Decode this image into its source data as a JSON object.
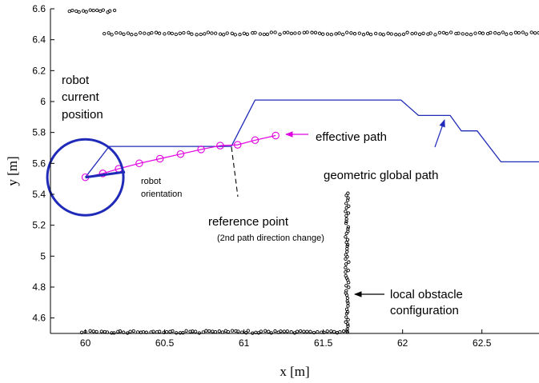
{
  "chart_data": {
    "type": "scatter",
    "title": "",
    "xlabel": "x [m]",
    "ylabel": "y [m]",
    "xlim": [
      59.78,
      62.86
    ],
    "ylim": [
      4.5,
      6.6
    ],
    "grid": false,
    "legend": "none",
    "x_ticks": [
      60,
      60.5,
      61,
      61.5,
      62,
      62.5
    ],
    "x_tick_labels": [
      "60",
      "60.5",
      "61",
      "61.5",
      "62",
      "62.5"
    ],
    "y_ticks": [
      4.6,
      4.8,
      5,
      5.2,
      5.4,
      5.6,
      5.8,
      6,
      6.2,
      6.4,
      6.6
    ],
    "y_tick_labels": [
      "4.6",
      "4.8",
      "5",
      "5.2",
      "5.4",
      "5.6",
      "5.8",
      "6",
      "6.2",
      "6.4",
      "6.6"
    ],
    "colors": {
      "global_path": "#1f2bb8",
      "effective_path": "#e000e0",
      "robot": "#1f2bb8",
      "obstacles": "#000000"
    },
    "obstacle_segments": [
      {
        "x_range": [
          59.9,
          60.18
        ],
        "y": 6.585,
        "count": 14
      },
      {
        "x_range": [
          60.12,
          62.86
        ],
        "y": 6.44,
        "count": 110
      },
      {
        "x_range": [
          60.12,
          61.65
        ],
        "y": 4.51,
        "count": 75
      },
      {
        "x_range": [
          59.98,
          60.1
        ],
        "y": 4.51,
        "count": 6
      },
      {
        "x": 61.65,
        "y_range": [
          4.51,
          5.41
        ],
        "count": 55
      }
    ],
    "series": [
      {
        "x": [
          60.0,
          60.15,
          60.92,
          61.07,
          61.99,
          62.1,
          62.3,
          62.37,
          62.47,
          62.62,
          62.86
        ],
        "y": [
          5.51,
          5.71,
          5.71,
          6.01,
          6.01,
          5.91,
          5.91,
          5.81,
          5.81,
          5.61,
          5.61
        ]
      },
      {
        "x": [
          60.0,
          60.11,
          60.21,
          60.34,
          60.47,
          60.6,
          60.73,
          60.85,
          60.96,
          61.07,
          61.2
        ],
        "y": [
          5.51,
          5.535,
          5.565,
          5.6,
          5.63,
          5.66,
          5.69,
          5.715,
          5.72,
          5.75,
          5.78
        ]
      }
    ],
    "robot": {
      "x": 60.0,
      "y": 5.51,
      "radius": 0.24,
      "orientation_end": [
        60.25,
        5.545
      ]
    },
    "annotations": [
      {
        "text": "robot"
      },
      {
        "text": "current"
      },
      {
        "text": "position"
      },
      {
        "text": "robot"
      },
      {
        "text": "orientation"
      },
      {
        "text": "effective path"
      },
      {
        "text": "geometric global path"
      },
      {
        "text": "reference point"
      },
      {
        "text": "(2nd path direction change)"
      },
      {
        "text": "local obstacle"
      },
      {
        "text": "configuration"
      }
    ]
  }
}
